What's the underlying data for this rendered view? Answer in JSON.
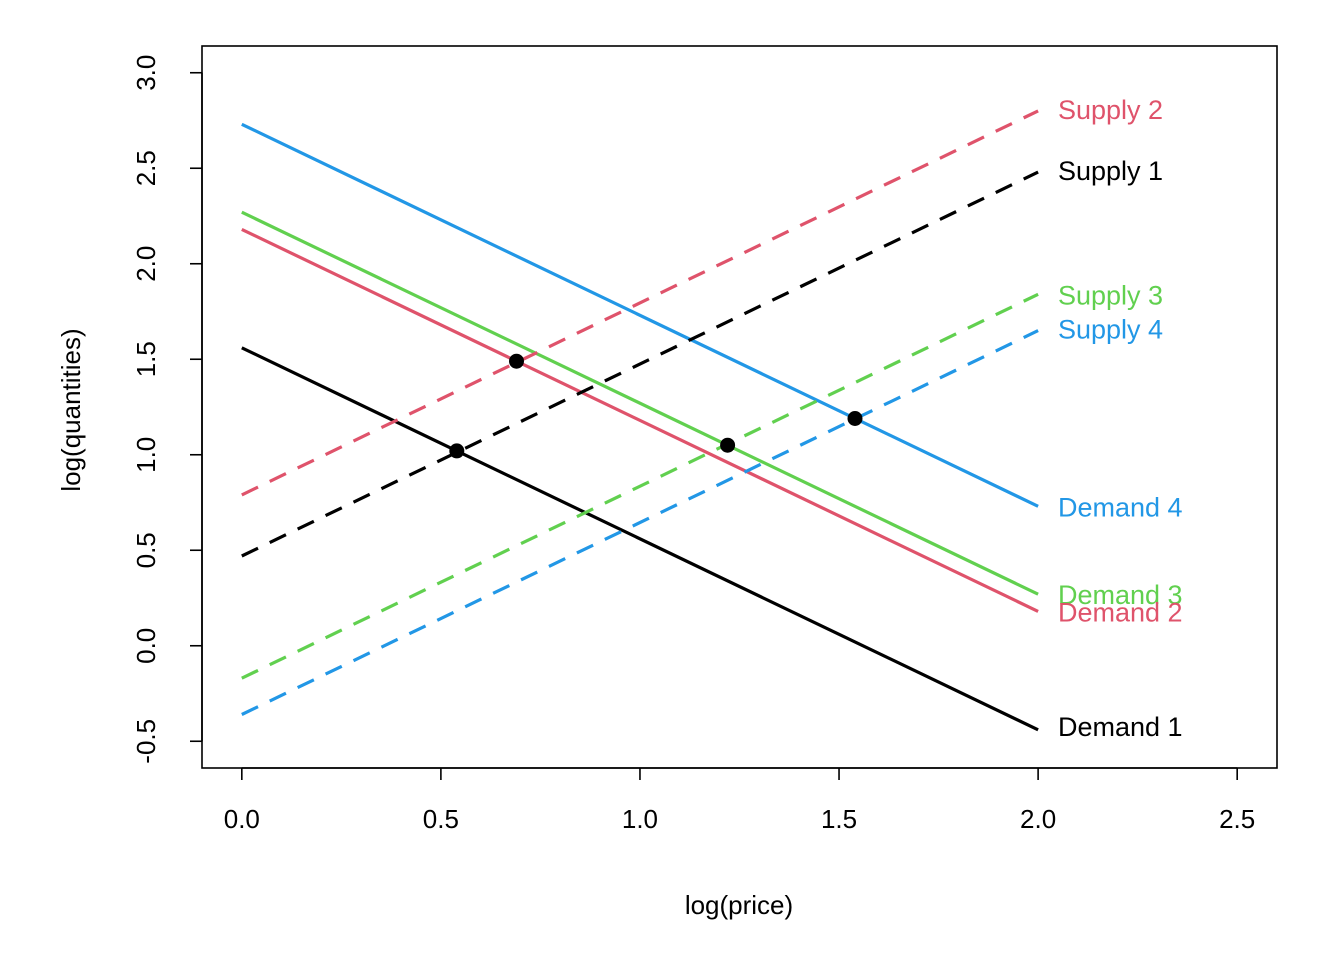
{
  "chart_data": {
    "type": "line",
    "xlabel": "log(price)",
    "ylabel": "log(quantities)",
    "xlim": [
      -0.1,
      2.6
    ],
    "ylim": [
      -0.64,
      3.14
    ],
    "x_ticks": [
      {
        "value": 0.0,
        "label": "0.0"
      },
      {
        "value": 0.5,
        "label": "0.5"
      },
      {
        "value": 1.0,
        "label": "1.0"
      },
      {
        "value": 1.5,
        "label": "1.5"
      },
      {
        "value": 2.0,
        "label": "2.0"
      },
      {
        "value": 2.5,
        "label": "2.5"
      }
    ],
    "y_ticks": [
      {
        "value": -0.5,
        "label": "-0.5"
      },
      {
        "value": 0.0,
        "label": "0.0"
      },
      {
        "value": 0.5,
        "label": "0.5"
      },
      {
        "value": 1.0,
        "label": "1.0"
      },
      {
        "value": 1.5,
        "label": "1.5"
      },
      {
        "value": 2.0,
        "label": "2.0"
      },
      {
        "value": 2.5,
        "label": "2.5"
      },
      {
        "value": 3.0,
        "label": "3.0"
      }
    ],
    "grid": false,
    "series": [
      {
        "name": "Demand 1",
        "kind": "demand",
        "x": [
          0,
          2
        ],
        "y": [
          1.56,
          -0.44
        ],
        "color": "#000000",
        "dash": "solid"
      },
      {
        "name": "Demand 2",
        "kind": "demand",
        "x": [
          0,
          2
        ],
        "y": [
          2.18,
          0.18
        ],
        "color": "#DF536B",
        "dash": "solid"
      },
      {
        "name": "Demand 3",
        "kind": "demand",
        "x": [
          0,
          2
        ],
        "y": [
          2.27,
          0.27
        ],
        "color": "#61D04F",
        "dash": "solid"
      },
      {
        "name": "Demand 4",
        "kind": "demand",
        "x": [
          0,
          2
        ],
        "y": [
          2.73,
          0.73
        ],
        "color": "#2297E6",
        "dash": "solid"
      },
      {
        "name": "Supply 1",
        "kind": "supply",
        "x": [
          0,
          2
        ],
        "y": [
          0.47,
          2.48
        ],
        "color": "#000000",
        "dash": "dashed"
      },
      {
        "name": "Supply 2",
        "kind": "supply",
        "x": [
          0,
          2
        ],
        "y": [
          0.79,
          2.8
        ],
        "color": "#DF536B",
        "dash": "dashed"
      },
      {
        "name": "Supply 3",
        "kind": "supply",
        "x": [
          0,
          2
        ],
        "y": [
          -0.17,
          1.84
        ],
        "color": "#61D04F",
        "dash": "dashed"
      },
      {
        "name": "Supply 4",
        "kind": "supply",
        "x": [
          0,
          2
        ],
        "y": [
          -0.36,
          1.65
        ],
        "color": "#2297E6",
        "dash": "dashed"
      }
    ],
    "labels": [
      {
        "text": "Supply 2",
        "x": 2.05,
        "y": 2.81,
        "color": "#DF536B"
      },
      {
        "text": "Supply 1",
        "x": 2.05,
        "y": 2.49,
        "color": "#000000"
      },
      {
        "text": "Supply 3",
        "x": 2.05,
        "y": 1.84,
        "color": "#61D04F"
      },
      {
        "text": "Supply 4",
        "x": 2.05,
        "y": 1.66,
        "color": "#2297E6"
      },
      {
        "text": "Demand 4",
        "x": 2.05,
        "y": 0.73,
        "color": "#2297E6"
      },
      {
        "text": "Demand 3",
        "x": 2.05,
        "y": 0.27,
        "color": "#61D04F"
      },
      {
        "text": "Demand 2",
        "x": 2.05,
        "y": 0.18,
        "color": "#DF536B"
      },
      {
        "text": "Demand 1",
        "x": 2.05,
        "y": -0.42,
        "color": "#000000"
      }
    ],
    "equilibrium_points": [
      {
        "x": 0.54,
        "y": 1.02
      },
      {
        "x": 0.69,
        "y": 1.49
      },
      {
        "x": 1.22,
        "y": 1.05
      },
      {
        "x": 1.54,
        "y": 1.19
      }
    ]
  }
}
